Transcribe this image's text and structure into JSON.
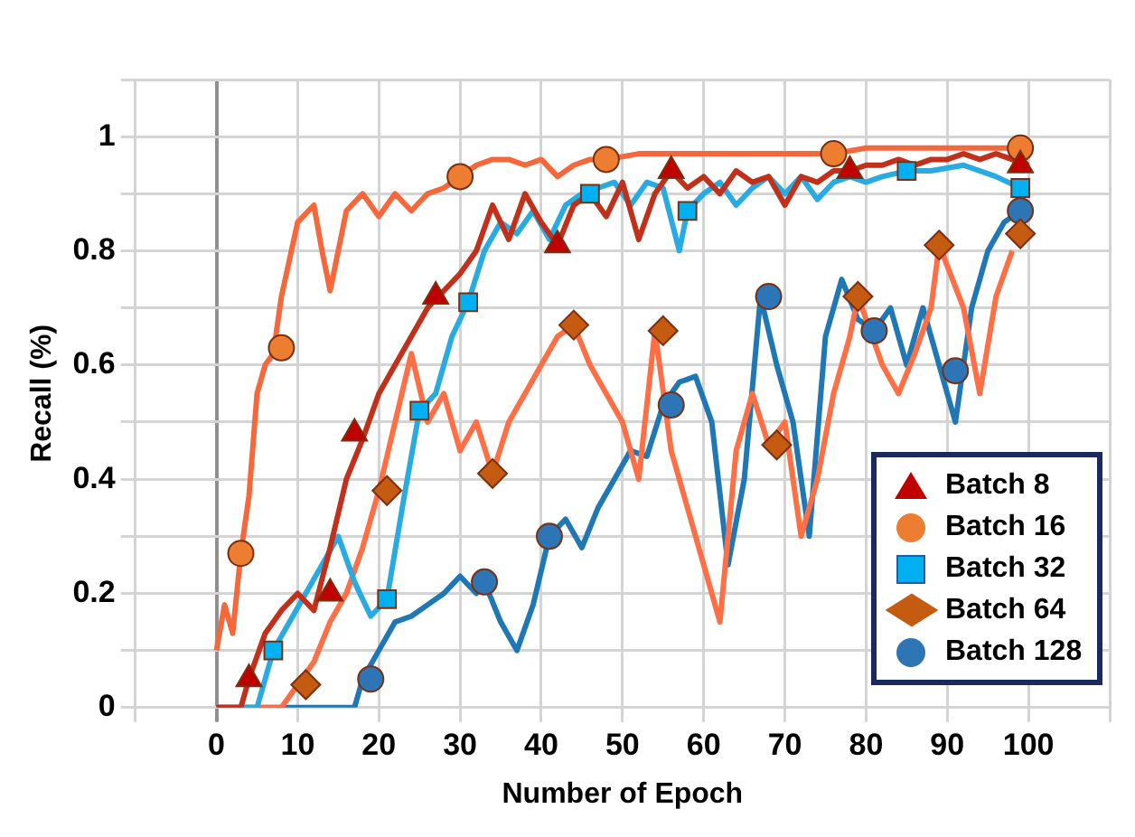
{
  "chart_data": {
    "type": "line",
    "xlabel": "Number of Epoch",
    "ylabel": "Recall (%)",
    "xlim": [
      -10,
      110
    ],
    "xticks": [
      {
        "value": -10,
        "label": null
      },
      0,
      10,
      20,
      30,
      40,
      50,
      60,
      70,
      80,
      90,
      100,
      {
        "value": 110,
        "label": null
      }
    ],
    "ylim": [
      0,
      1.1
    ],
    "yticks": [
      0,
      {
        "value": 0.1,
        "label": null
      },
      0.2,
      {
        "value": 0.3,
        "label": null
      },
      0.4,
      {
        "value": 0.5,
        "label": null
      },
      0.6,
      {
        "value": 0.7,
        "label": null
      },
      0.8,
      {
        "value": 0.9,
        "label": null
      },
      1,
      {
        "value": 1.1,
        "label": null
      }
    ],
    "grid": true,
    "legend": "bottom right",
    "series": [
      {
        "type": "line",
        "marker": "none",
        "color": "#c0301a",
        "x": [
          0,
          3,
          4,
          6,
          8,
          10,
          12,
          14,
          16,
          18,
          20,
          22,
          24,
          26,
          28,
          30,
          32,
          34,
          36,
          38,
          40,
          42,
          44,
          46,
          48,
          50,
          52,
          54,
          56,
          58,
          60,
          62,
          64,
          66,
          68,
          70,
          72,
          74,
          76,
          78,
          80,
          82,
          84,
          86,
          88,
          90,
          92,
          94,
          96,
          98,
          100
        ],
        "values": [
          0,
          0,
          0.05,
          0.13,
          0.17,
          0.2,
          0.17,
          0.28,
          0.4,
          0.47,
          0.55,
          0.6,
          0.65,
          0.7,
          0.73,
          0.76,
          0.8,
          0.88,
          0.82,
          0.9,
          0.85,
          0.81,
          0.88,
          0.9,
          0.86,
          0.92,
          0.82,
          0.9,
          0.94,
          0.91,
          0.93,
          0.9,
          0.94,
          0.92,
          0.93,
          0.88,
          0.93,
          0.92,
          0.94,
          0.94,
          0.95,
          0.95,
          0.96,
          0.95,
          0.96,
          0.96,
          0.97,
          0.96,
          0.97,
          0.96,
          0.95
        ]
      },
      {
        "type": "line",
        "marker": "none",
        "color": "#f4683c",
        "x": [
          0,
          1,
          2,
          3,
          4,
          5,
          6,
          7,
          8,
          10,
          12,
          13,
          14,
          16,
          18,
          20,
          22,
          24,
          26,
          28,
          30,
          32,
          34,
          36,
          38,
          40,
          42,
          44,
          46,
          48,
          52,
          56,
          60,
          70,
          76,
          80,
          90,
          100
        ],
        "values": [
          0.1,
          0.18,
          0.13,
          0.27,
          0.37,
          0.55,
          0.6,
          0.62,
          0.72,
          0.85,
          0.88,
          0.8,
          0.73,
          0.87,
          0.9,
          0.86,
          0.9,
          0.87,
          0.9,
          0.91,
          0.93,
          0.95,
          0.96,
          0.96,
          0.95,
          0.96,
          0.93,
          0.95,
          0.96,
          0.96,
          0.97,
          0.97,
          0.97,
          0.97,
          0.97,
          0.98,
          0.98,
          0.98
        ]
      },
      {
        "type": "line",
        "marker": "none",
        "color": "#29abe2",
        "x": [
          0,
          5,
          6,
          7,
          9,
          11,
          13,
          15,
          17,
          19,
          21,
          23,
          25,
          27,
          29,
          31,
          33,
          35,
          37,
          39,
          41,
          43,
          45,
          47,
          49,
          51,
          53,
          55,
          57,
          58,
          60,
          62,
          64,
          66,
          68,
          70,
          72,
          74,
          76,
          78,
          80,
          82,
          85,
          88,
          92,
          96,
          99
        ],
        "values": [
          0,
          0,
          0.05,
          0.1,
          0.15,
          0.2,
          0.25,
          0.3,
          0.22,
          0.16,
          0.19,
          0.36,
          0.52,
          0.55,
          0.65,
          0.71,
          0.8,
          0.85,
          0.83,
          0.87,
          0.82,
          0.88,
          0.9,
          0.91,
          0.92,
          0.88,
          0.92,
          0.91,
          0.8,
          0.87,
          0.9,
          0.92,
          0.88,
          0.91,
          0.93,
          0.9,
          0.93,
          0.89,
          0.92,
          0.93,
          0.92,
          0.93,
          0.94,
          0.94,
          0.95,
          0.93,
          0.91
        ]
      },
      {
        "type": "line",
        "marker": "none",
        "color": "#ff6f45",
        "x": [
          0,
          8,
          10,
          12,
          14,
          16,
          18,
          20,
          22,
          24,
          26,
          28,
          30,
          32,
          34,
          36,
          38,
          40,
          42,
          44,
          46,
          48,
          50,
          52,
          54,
          56,
          58,
          60,
          62,
          64,
          66,
          68,
          70,
          72,
          74,
          76,
          78,
          79,
          82,
          84,
          86,
          88,
          89,
          92,
          94,
          96,
          98
        ],
        "values": [
          0,
          0,
          0.04,
          0.08,
          0.15,
          0.2,
          0.28,
          0.38,
          0.5,
          0.62,
          0.5,
          0.55,
          0.45,
          0.5,
          0.41,
          0.5,
          0.55,
          0.6,
          0.65,
          0.67,
          0.6,
          0.55,
          0.5,
          0.4,
          0.66,
          0.45,
          0.35,
          0.25,
          0.15,
          0.45,
          0.55,
          0.46,
          0.5,
          0.3,
          0.4,
          0.55,
          0.65,
          0.72,
          0.6,
          0.55,
          0.62,
          0.7,
          0.81,
          0.7,
          0.55,
          0.72,
          0.8
        ]
      },
      {
        "type": "line",
        "marker": "none",
        "color": "#1f77b4",
        "x": [
          0,
          17,
          18,
          20,
          22,
          24,
          26,
          28,
          30,
          32,
          33,
          35,
          37,
          39,
          41,
          43,
          45,
          47,
          49,
          51,
          53,
          55,
          57,
          59,
          61,
          63,
          65,
          67,
          69,
          71,
          73,
          75,
          77,
          79,
          81,
          83,
          85,
          87,
          89,
          91,
          93,
          95,
          97,
          99,
          100
        ],
        "values": [
          0,
          0,
          0.05,
          0.1,
          0.15,
          0.16,
          0.18,
          0.2,
          0.23,
          0.2,
          0.22,
          0.15,
          0.1,
          0.18,
          0.3,
          0.33,
          0.28,
          0.35,
          0.4,
          0.45,
          0.44,
          0.53,
          0.57,
          0.58,
          0.5,
          0.25,
          0.4,
          0.72,
          0.6,
          0.5,
          0.3,
          0.65,
          0.75,
          0.68,
          0.66,
          0.7,
          0.6,
          0.7,
          0.6,
          0.5,
          0.7,
          0.8,
          0.85,
          0.87,
          0.88
        ]
      },
      {
        "type": "scatter",
        "name": "Batch 8",
        "marker": "triangle",
        "color": "#c00000",
        "x": [
          4,
          14,
          17,
          27,
          42,
          56,
          78,
          99
        ],
        "values": [
          0.05,
          0.2,
          0.48,
          0.72,
          0.81,
          0.94,
          0.94,
          0.95
        ]
      },
      {
        "type": "scatter",
        "name": "Batch 16",
        "marker": "circle",
        "color": "#ed7d31",
        "x": [
          3,
          8,
          30,
          48,
          76,
          99
        ],
        "values": [
          0.27,
          0.63,
          0.93,
          0.96,
          0.97,
          0.98
        ]
      },
      {
        "type": "scatter",
        "name": "Batch 32",
        "marker": "square",
        "color": "#00b0f0",
        "x": [
          7,
          21,
          25,
          31,
          46,
          58,
          85,
          99
        ],
        "values": [
          0.1,
          0.19,
          0.52,
          0.71,
          0.9,
          0.87,
          0.94,
          0.91
        ]
      },
      {
        "type": "scatter",
        "name": "Batch 64",
        "marker": "diamond",
        "color": "#c55a11",
        "x": [
          11,
          21,
          34,
          44,
          55,
          69,
          79,
          89,
          99
        ],
        "values": [
          0.04,
          0.38,
          0.41,
          0.67,
          0.66,
          0.46,
          0.72,
          0.81,
          0.83
        ]
      },
      {
        "type": "scatter",
        "name": "Batch 128",
        "marker": "circle",
        "color": "#2e75b6",
        "x": [
          19,
          33,
          41,
          56,
          68,
          81,
          91,
          99
        ],
        "values": [
          0.05,
          0.22,
          0.3,
          0.53,
          0.72,
          0.66,
          0.59,
          0.87
        ]
      }
    ]
  }
}
